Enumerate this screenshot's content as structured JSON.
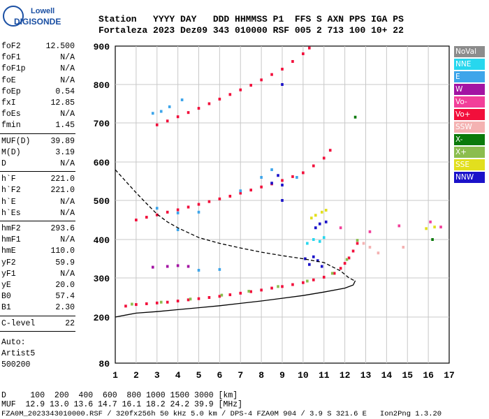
{
  "logo": {
    "top": "Lowell",
    "bottom": "DIGISONDE"
  },
  "header": {
    "line1": "Station   YYYY DAY   DDD HHMMSS P1  FFS S AXN PPS IGA PS",
    "line2": "Fortaleza 2023 Dez09 343 010000 RSF 005 2 713 100 10+ 22"
  },
  "params": {
    "group1": [
      {
        "k": "foF2",
        "v": "12.500"
      },
      {
        "k": "foF1",
        "v": "N/A"
      },
      {
        "k": "foF1p",
        "v": "N/A"
      },
      {
        "k": "foE",
        "v": "N/A"
      },
      {
        "k": "foEp",
        "v": "0.54"
      },
      {
        "k": "fxI",
        "v": "12.85"
      },
      {
        "k": "foEs",
        "v": "N/A"
      },
      {
        "k": "fmin",
        "v": "1.45"
      }
    ],
    "group2": [
      {
        "k": "MUF(D)",
        "v": "39.89"
      },
      {
        "k": "M(D)",
        "v": "3.19"
      },
      {
        "k": "D",
        "v": "N/A"
      }
    ],
    "group3": [
      {
        "k": "h`F",
        "v": "221.0"
      },
      {
        "k": "h`F2",
        "v": "221.0"
      },
      {
        "k": "h`E",
        "v": "N/A"
      },
      {
        "k": "h`Es",
        "v": "N/A"
      }
    ],
    "group4": [
      {
        "k": "hmF2",
        "v": "293.6"
      },
      {
        "k": "hmF1",
        "v": "N/A"
      },
      {
        "k": "hmE",
        "v": "110.0"
      },
      {
        "k": "yF2",
        "v": "59.9"
      },
      {
        "k": "yF1",
        "v": "N/A"
      },
      {
        "k": "yE",
        "v": "20.0"
      },
      {
        "k": "B0",
        "v": "57.4"
      },
      {
        "k": "B1",
        "v": "2.30"
      }
    ],
    "group5": [
      {
        "k": "C-level",
        "v": "22"
      }
    ]
  },
  "auto": {
    "line1": "Auto:",
    "line2": "Artist5",
    "line3": "500200"
  },
  "legend": [
    {
      "label": "NoVal",
      "color": "#8c8c8c"
    },
    {
      "label": "NNE",
      "color": "#27d7ee"
    },
    {
      "label": "E",
      "color": "#3ea5ea"
    },
    {
      "label": "W",
      "color": "#a313a3"
    },
    {
      "label": "Vo-",
      "color": "#f23f9a"
    },
    {
      "label": "Vo+",
      "color": "#f20f3b"
    },
    {
      "label": "SSW",
      "color": "#f4b2b2"
    },
    {
      "label": "X-",
      "color": "#0b7a0b"
    },
    {
      "label": "X+",
      "color": "#8bbd4e"
    },
    {
      "label": "SSE",
      "color": "#e2df1e"
    },
    {
      "label": "NNW",
      "color": "#1b12c9"
    }
  ],
  "footer": {
    "line1": "D     100  200  400  600  800 1000 1500 3000 [km]",
    "line2": "MUF  12.9 13.0 13.6 14.7 16.1 18.2 24.2 39.9 [MHz]",
    "line3": "FZA0M_2023343010000.RSF / 320fx256h 50 kHz 5.0 km / DPS-4 FZA0M 904 / 3.9 S 321.6 E   Ion2Png 1.3.20"
  },
  "chart_data": {
    "type": "scatter",
    "xlabel": "",
    "ylabel": "",
    "xlim": [
      1,
      17
    ],
    "ylim": [
      80,
      900
    ],
    "x_ticks": [
      1,
      2,
      3,
      4,
      5,
      6,
      7,
      8,
      9,
      10,
      11,
      12,
      13,
      14,
      15,
      16,
      17
    ],
    "y_ticks": [
      80,
      200,
      300,
      400,
      500,
      600,
      700,
      800,
      900
    ],
    "grid": true,
    "series": [
      {
        "color": "#f20f3b",
        "points": [
          [
            1.5,
            228
          ],
          [
            2,
            232
          ],
          [
            2.5,
            234
          ],
          [
            3,
            236
          ],
          [
            3.5,
            238
          ],
          [
            4,
            241
          ],
          [
            4.5,
            244
          ],
          [
            5,
            247
          ],
          [
            5.5,
            250
          ],
          [
            6,
            253
          ],
          [
            6.5,
            257
          ],
          [
            7,
            261
          ],
          [
            7.5,
            265
          ],
          [
            8,
            269
          ],
          [
            8.5,
            274
          ],
          [
            9,
            278
          ],
          [
            9.5,
            283
          ],
          [
            10,
            288
          ],
          [
            10.5,
            295
          ],
          [
            11,
            302
          ],
          [
            11.5,
            312
          ],
          [
            11.8,
            325
          ],
          [
            12,
            338
          ],
          [
            12.2,
            352
          ],
          [
            12.4,
            370
          ],
          [
            12.6,
            390
          ]
        ]
      },
      {
        "color": "#8bbd4e",
        "points": [
          [
            1.8,
            233
          ],
          [
            3.2,
            238
          ],
          [
            4.6,
            246
          ],
          [
            6.1,
            256
          ],
          [
            7.4,
            266
          ],
          [
            8.8,
            278
          ],
          [
            10.2,
            292
          ],
          [
            11.4,
            312
          ],
          [
            12.1,
            348
          ],
          [
            12.6,
            398
          ]
        ]
      },
      {
        "color": "#f20f3b",
        "points": [
          [
            2,
            450
          ],
          [
            2.5,
            457
          ],
          [
            3,
            463
          ],
          [
            3.5,
            470
          ],
          [
            4,
            476
          ],
          [
            4.5,
            483
          ],
          [
            5,
            490
          ],
          [
            5.5,
            497
          ],
          [
            6,
            504
          ],
          [
            6.5,
            511
          ],
          [
            7,
            519
          ],
          [
            7.5,
            527
          ],
          [
            8,
            535
          ],
          [
            8.5,
            543
          ],
          [
            9,
            552
          ],
          [
            9.5,
            562
          ],
          [
            10,
            572
          ],
          [
            10.5,
            590
          ],
          [
            11,
            610
          ],
          [
            11.3,
            630
          ]
        ]
      },
      {
        "color": "#3ea5ea",
        "points": [
          [
            3,
            480
          ],
          [
            4,
            468
          ],
          [
            5,
            470
          ],
          [
            7,
            525
          ],
          [
            8,
            560
          ],
          [
            9.7,
            560
          ],
          [
            8.5,
            580
          ],
          [
            4,
            425
          ],
          [
            5,
            320
          ],
          [
            6,
            322
          ]
        ]
      },
      {
        "color": "#f20f3b",
        "points": [
          [
            3,
            695
          ],
          [
            3.5,
            705
          ],
          [
            4,
            716
          ],
          [
            4.5,
            727
          ],
          [
            5,
            738
          ],
          [
            5.5,
            750
          ],
          [
            6,
            762
          ],
          [
            6.5,
            774
          ],
          [
            7,
            786
          ],
          [
            7.5,
            798
          ],
          [
            8,
            812
          ],
          [
            8.5,
            826
          ],
          [
            9,
            840
          ],
          [
            9.5,
            860
          ],
          [
            10,
            880
          ],
          [
            10.3,
            895
          ]
        ]
      },
      {
        "color": "#3ea5ea",
        "points": [
          [
            2.8,
            725
          ],
          [
            3.2,
            730
          ],
          [
            3.6,
            742
          ],
          [
            4.2,
            760
          ]
        ]
      },
      {
        "color": "#a313a3",
        "points": [
          [
            2.8,
            328
          ],
          [
            3.5,
            330
          ],
          [
            4,
            332
          ],
          [
            4.5,
            330
          ]
        ]
      },
      {
        "color": "#1b12c9",
        "points": [
          [
            9,
            800
          ],
          [
            9,
            540
          ],
          [
            9,
            500
          ],
          [
            10.1,
            350
          ],
          [
            10.3,
            335
          ],
          [
            10.5,
            355
          ],
          [
            10.7,
            345
          ],
          [
            10.9,
            330
          ],
          [
            10.8,
            440
          ],
          [
            10.6,
            430
          ],
          [
            11.1,
            445
          ],
          [
            8.5,
            545
          ],
          [
            8.8,
            565
          ]
        ]
      },
      {
        "color": "#e2df1e",
        "points": [
          [
            10.4,
            455
          ],
          [
            10.6,
            462
          ],
          [
            10.9,
            470
          ],
          [
            11.1,
            475
          ],
          [
            16.3,
            432
          ],
          [
            15.9,
            428
          ]
        ]
      },
      {
        "color": "#27d7ee",
        "points": [
          [
            10.2,
            390
          ],
          [
            10.5,
            400
          ],
          [
            10.8,
            395
          ],
          [
            11.0,
            405
          ]
        ]
      },
      {
        "color": "#f23f9a",
        "points": [
          [
            11.8,
            430
          ],
          [
            13.2,
            420
          ],
          [
            14.6,
            435
          ],
          [
            16.1,
            445
          ],
          [
            16.6,
            432
          ]
        ]
      },
      {
        "color": "#f4b2b2",
        "points": [
          [
            12.9,
            390
          ],
          [
            13.2,
            380
          ],
          [
            14.8,
            380
          ],
          [
            13.6,
            365
          ]
        ]
      },
      {
        "color": "#0b7a0b",
        "points": [
          [
            12.5,
            715
          ],
          [
            16.2,
            400
          ]
        ]
      }
    ],
    "lines": [
      {
        "style": "dashed",
        "points": [
          [
            1,
            580
          ],
          [
            1.5,
            550
          ],
          [
            2,
            520
          ],
          [
            2.5,
            492
          ],
          [
            3,
            465
          ],
          [
            3.5,
            445
          ],
          [
            4,
            430
          ],
          [
            5,
            405
          ],
          [
            6,
            390
          ],
          [
            7,
            378
          ],
          [
            8,
            367
          ],
          [
            9,
            358
          ],
          [
            10,
            350
          ],
          [
            11,
            340
          ],
          [
            11.8,
            318
          ],
          [
            12.2,
            300
          ],
          [
            12.5,
            292
          ]
        ]
      },
      {
        "style": "solid",
        "points": [
          [
            1,
            200
          ],
          [
            1.5,
            205
          ],
          [
            2,
            210
          ],
          [
            3,
            214
          ],
          [
            4,
            219
          ],
          [
            5,
            224
          ],
          [
            6,
            229
          ],
          [
            7,
            235
          ],
          [
            8,
            241
          ],
          [
            9,
            248
          ],
          [
            10,
            255
          ],
          [
            11,
            264
          ],
          [
            12,
            274
          ],
          [
            12.4,
            282
          ],
          [
            12.5,
            293
          ]
        ]
      }
    ]
  }
}
